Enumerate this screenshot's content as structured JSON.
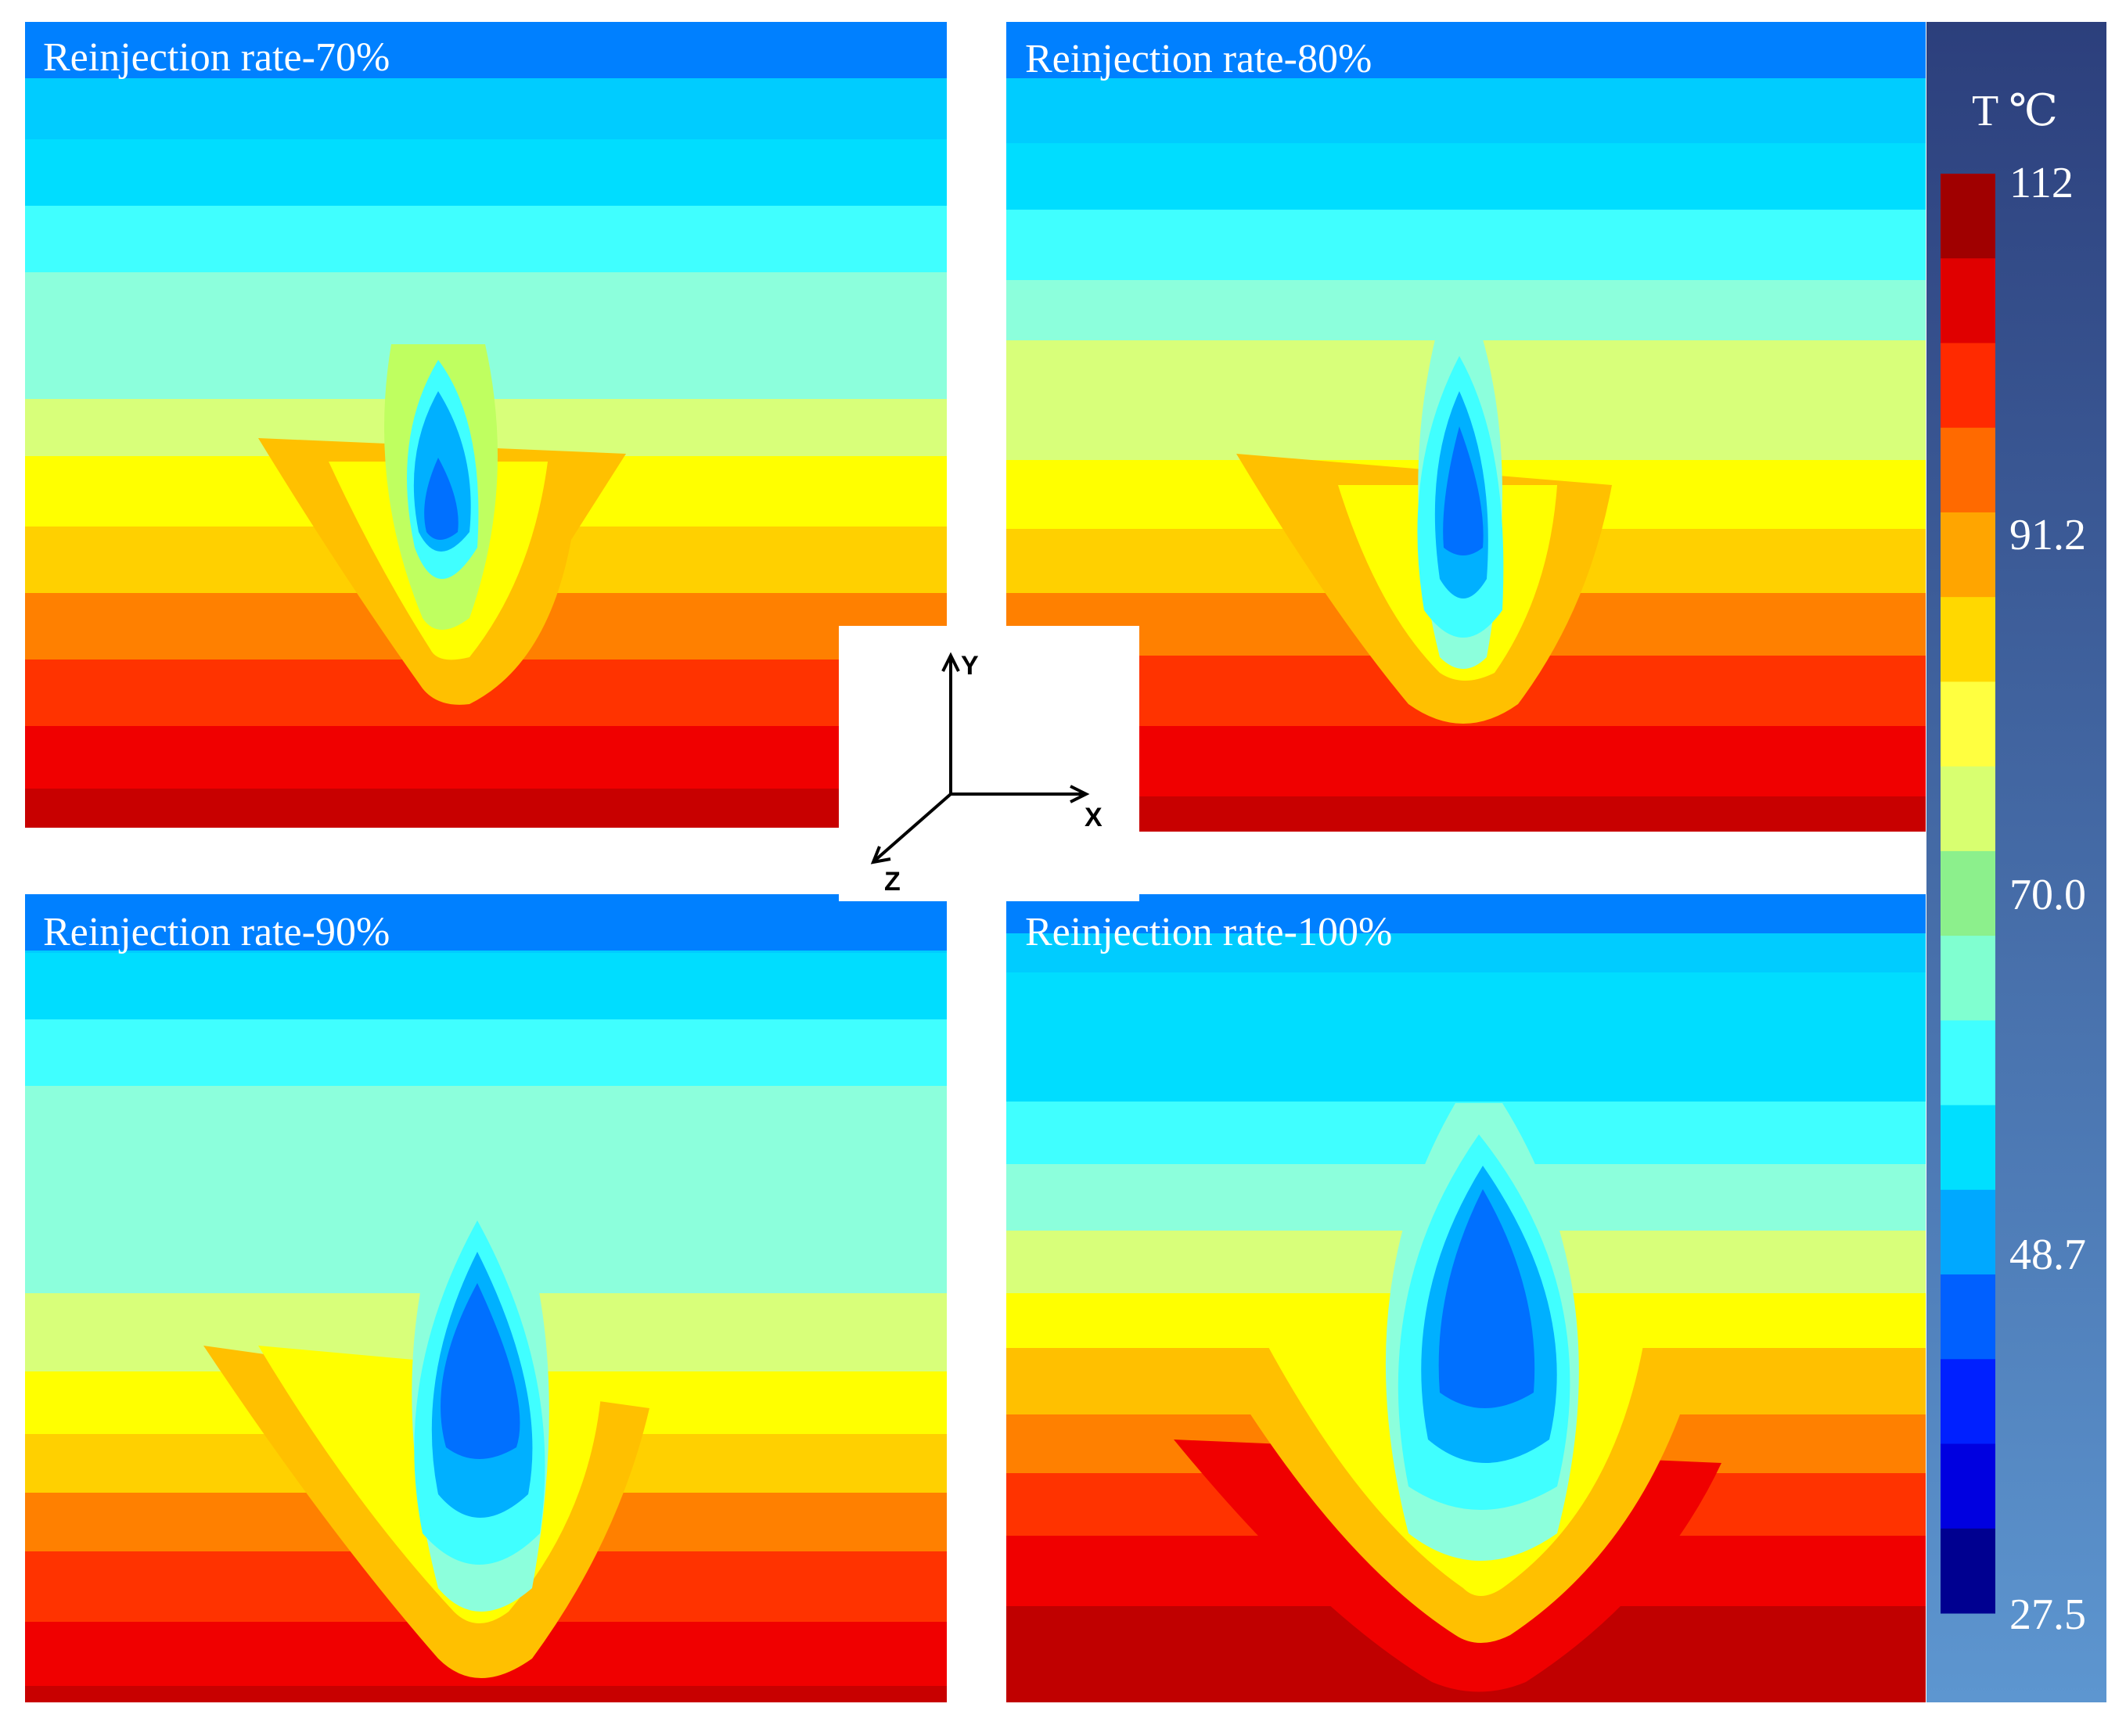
{
  "panels": [
    {
      "title": "Reinjection rate-70%"
    },
    {
      "title": "Reinjection rate-80%"
    },
    {
      "title": "Reinjection rate-90%"
    },
    {
      "title": "Reinjection rate-100%"
    }
  ],
  "colorbar": {
    "title": "T  ℃",
    "ticks": [
      "112",
      "91.2",
      "70.0",
      "48.7",
      "27.5"
    ],
    "colors_top_to_bottom": [
      "#a00000",
      "#e00000",
      "#ff2a00",
      "#ff6a00",
      "#ffa500",
      "#ffd800",
      "#ffff40",
      "#d8ff70",
      "#8cf08c",
      "#80ffd0",
      "#40ffff",
      "#00dfff",
      "#00a8ff",
      "#0060ff",
      "#0020ff",
      "#0000e0",
      "#000090"
    ]
  },
  "axes": {
    "x": "X",
    "y": "Y",
    "z": "Z"
  }
}
